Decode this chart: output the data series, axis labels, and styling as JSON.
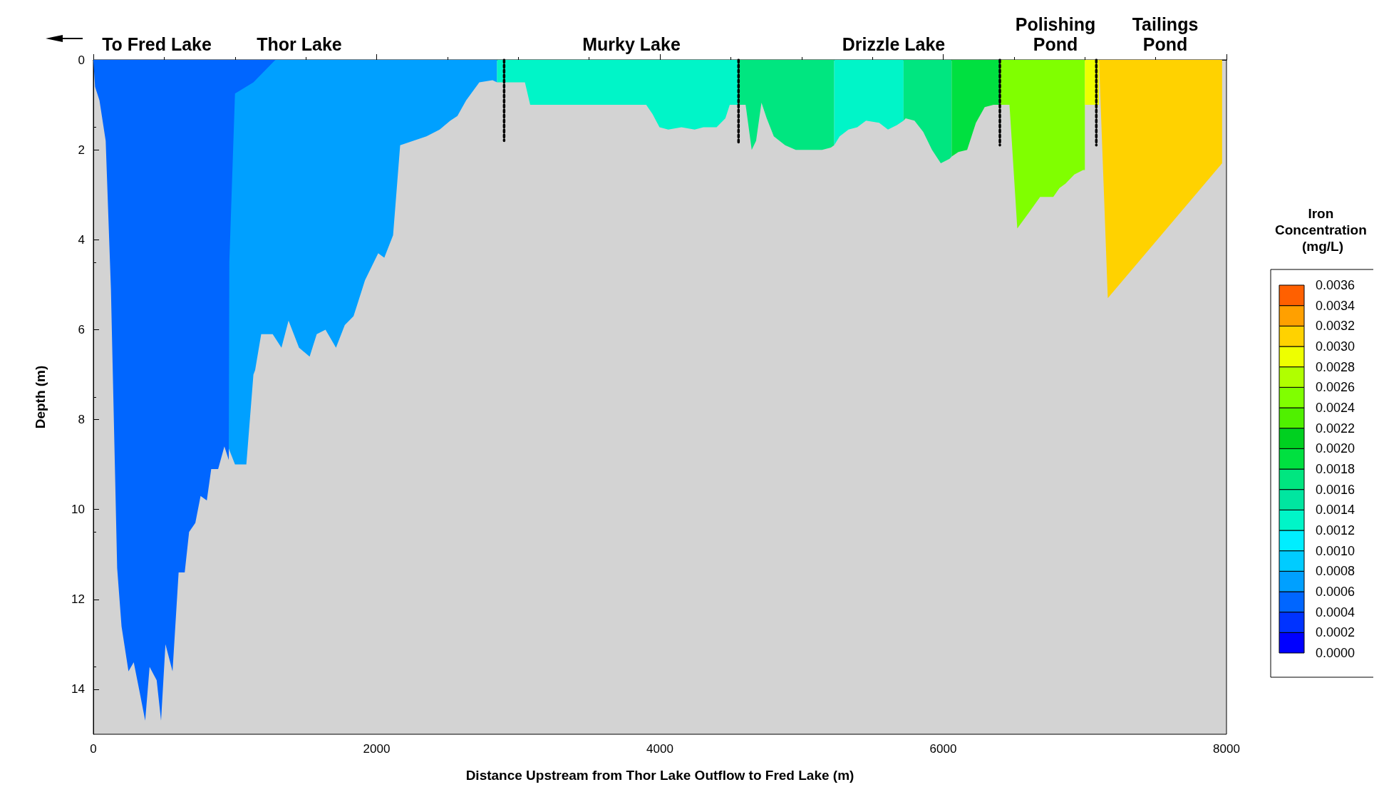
{
  "chart_data": {
    "type": "area",
    "xlabel": "Distance Upstream from Thor Lake Outflow to Fred Lake (m)",
    "ylabel": "Depth (m)",
    "clabel": "Iron Concentration (mg/L)",
    "xlim": [
      0,
      8000
    ],
    "xticks": [
      0,
      2000,
      4000,
      6000,
      8000
    ],
    "ylim": [
      15,
      0
    ],
    "yticks": [
      0,
      2,
      4,
      6,
      8,
      10,
      12,
      14
    ],
    "grid": false,
    "line_style": "dotted",
    "annotations": [
      "To Fred Lake",
      "Thor Lake",
      "Murky Lake",
      "Drizzle Lake",
      "Polishing Pond",
      "Tailings Pond"
    ],
    "clim": [
      0,
      0.0036
    ],
    "cticks": [
      {
        "value": 0,
        "label": "0.0000"
      },
      {
        "value": 0.0002,
        "label": "0.0002"
      },
      {
        "value": 0.0004,
        "label": "0.0004"
      },
      {
        "value": 0.0006,
        "label": "0.0006"
      },
      {
        "value": 0.0008,
        "label": "0.0008"
      },
      {
        "value": 0.001,
        "label": "0.0010"
      },
      {
        "value": 0.0012,
        "label": "0.0012"
      },
      {
        "value": 0.0014,
        "label": "0.0014"
      },
      {
        "value": 0.0016,
        "label": "0.0016"
      },
      {
        "value": 0.0018,
        "label": "0.0018"
      },
      {
        "value": 0.002,
        "label": "0.0020"
      },
      {
        "value": 0.0022,
        "label": "0.0022"
      },
      {
        "value": 0.0024,
        "label": "0.0024"
      },
      {
        "value": 0.0026,
        "label": "0.0026"
      },
      {
        "value": 0.0028,
        "label": "0.0028"
      },
      {
        "value": 0.003,
        "label": "0.0030"
      },
      {
        "value": 0.0032,
        "label": "0.0032"
      },
      {
        "value": 0.0034,
        "label": "0.0034"
      },
      {
        "value": 0.0036,
        "label": "0.0036"
      }
    ],
    "colors": [
      "#0000ff",
      "#0033ff",
      "#0066ff",
      "#00a0ff",
      "#00ccff",
      "#00eeff",
      "#00f5c8",
      "#00e6a0",
      "#00e680",
      "#00e040",
      "#00d020",
      "#50f000",
      "#80ff00",
      "#b0ff00",
      "#eeff00",
      "#ffd200",
      "#ffa000",
      "#ff6000"
    ],
    "series": [
      {
        "color": "#00a0ff",
        "x": [
          950,
          1000,
          1080,
          1130,
          1142,
          1185,
          1266,
          1328,
          1378,
          1452,
          1527,
          1577,
          1639,
          1713,
          1775,
          1837,
          1918,
          2011,
          2054,
          2116,
          2166,
          2259,
          2352,
          2445,
          2520,
          2570,
          2632,
          2725,
          2818,
          2850
        ],
        "values": [
          8.6,
          9.0,
          9.0,
          7.0,
          6.9,
          6.1,
          6.1,
          6.4,
          5.8,
          6.4,
          6.6,
          6.1,
          6.0,
          6.4,
          5.9,
          5.7,
          4.9,
          4.3,
          4.4,
          3.9,
          1.9,
          1.8,
          1.7,
          1.55,
          1.35,
          1.25,
          0.9,
          0.5,
          0.45,
          0.5
        ]
      },
      {
        "color": "#0066ff",
        "x": [
          0,
          12,
          43,
          87,
          124,
          168,
          199,
          248,
          285,
          323,
          366,
          397,
          447,
          478,
          509,
          559,
          602,
          645,
          676,
          720,
          757,
          801,
          832,
          881,
          925,
          956,
          960,
          1000,
          1130,
          1285
        ],
        "values": [
          0,
          0.6,
          0.9,
          1.8,
          5.1,
          11.3,
          12.6,
          13.6,
          13.4,
          14.0,
          14.7,
          13.5,
          13.8,
          14.7,
          13.0,
          13.6,
          11.4,
          11.4,
          10.5,
          10.3,
          9.7,
          9.8,
          9.1,
          9.1,
          8.6,
          8.9,
          4.5,
          0.75,
          0.5,
          0
        ]
      },
      {
        "color": "#00f5c8",
        "x": [
          2850,
          3047,
          3084,
          3903,
          3947,
          3997,
          4059,
          4152,
          4245,
          4307,
          4400,
          4462,
          4493,
          4555
        ],
        "values": [
          0.5,
          0.5,
          1.0,
          1.0,
          1.2,
          1.5,
          1.55,
          1.5,
          1.55,
          1.5,
          1.5,
          1.3,
          1.0,
          1.0
        ]
      },
      {
        "color": "#00e680",
        "x": [
          4555,
          4605,
          4648,
          4679,
          4717,
          4754,
          4804,
          4884,
          4959,
          5052,
          5145,
          5207,
          5230
        ],
        "values": [
          1.0,
          1.0,
          2.0,
          1.8,
          0.95,
          1.3,
          1.7,
          1.9,
          2.0,
          2.0,
          2.0,
          1.95,
          1.9
        ]
      },
      {
        "color": "#00f5c8",
        "x": [
          5230,
          5269,
          5331,
          5393,
          5455,
          5548,
          5610,
          5673,
          5720
        ],
        "values": [
          1.9,
          1.7,
          1.55,
          1.5,
          1.35,
          1.4,
          1.55,
          1.45,
          1.35
        ]
      },
      {
        "color": "#00e680",
        "x": [
          5720,
          5735,
          5797,
          5859,
          5921,
          5983,
          6045,
          6060
        ],
        "values": [
          1.35,
          1.3,
          1.35,
          1.6,
          2.0,
          2.3,
          2.2,
          2.15
        ]
      },
      {
        "color": "#00e040",
        "x": [
          6060,
          6107,
          6169,
          6231,
          6293,
          6355,
          6400
        ],
        "values": [
          2.15,
          2.05,
          2.0,
          1.4,
          1.05,
          1.0,
          1.0
        ]
      },
      {
        "color": "#80ff00",
        "x": [
          6400,
          6468,
          6523,
          6604,
          6684,
          6777,
          6821,
          6864,
          6926,
          6988,
          7000
        ],
        "values": [
          1.0,
          1.0,
          3.75,
          3.4,
          3.05,
          3.05,
          2.85,
          2.75,
          2.55,
          2.45,
          2.45
        ]
      },
      {
        "color": "#eeff00",
        "x": [
          7000,
          7100
        ],
        "values": [
          1.0,
          1.0
        ]
      },
      {
        "color": "#ffd200",
        "x": [
          7100,
          7162,
          7969,
          7969
        ],
        "values": [
          0,
          5.3,
          2.3,
          0
        ]
      },
      {
        "type": "line",
        "color": "#000000",
        "x": [
          2900,
          2900
        ],
        "values": [
          0,
          1.8
        ]
      },
      {
        "type": "line",
        "color": "#000000",
        "x": [
          4555,
          4555
        ],
        "values": [
          0,
          1.85
        ]
      },
      {
        "type": "line",
        "color": "#000000",
        "x": [
          6400,
          6400
        ],
        "values": [
          0,
          1.9
        ]
      },
      {
        "type": "line",
        "color": "#000000",
        "x": [
          7081,
          7081
        ],
        "values": [
          0,
          1.9
        ]
      }
    ]
  }
}
